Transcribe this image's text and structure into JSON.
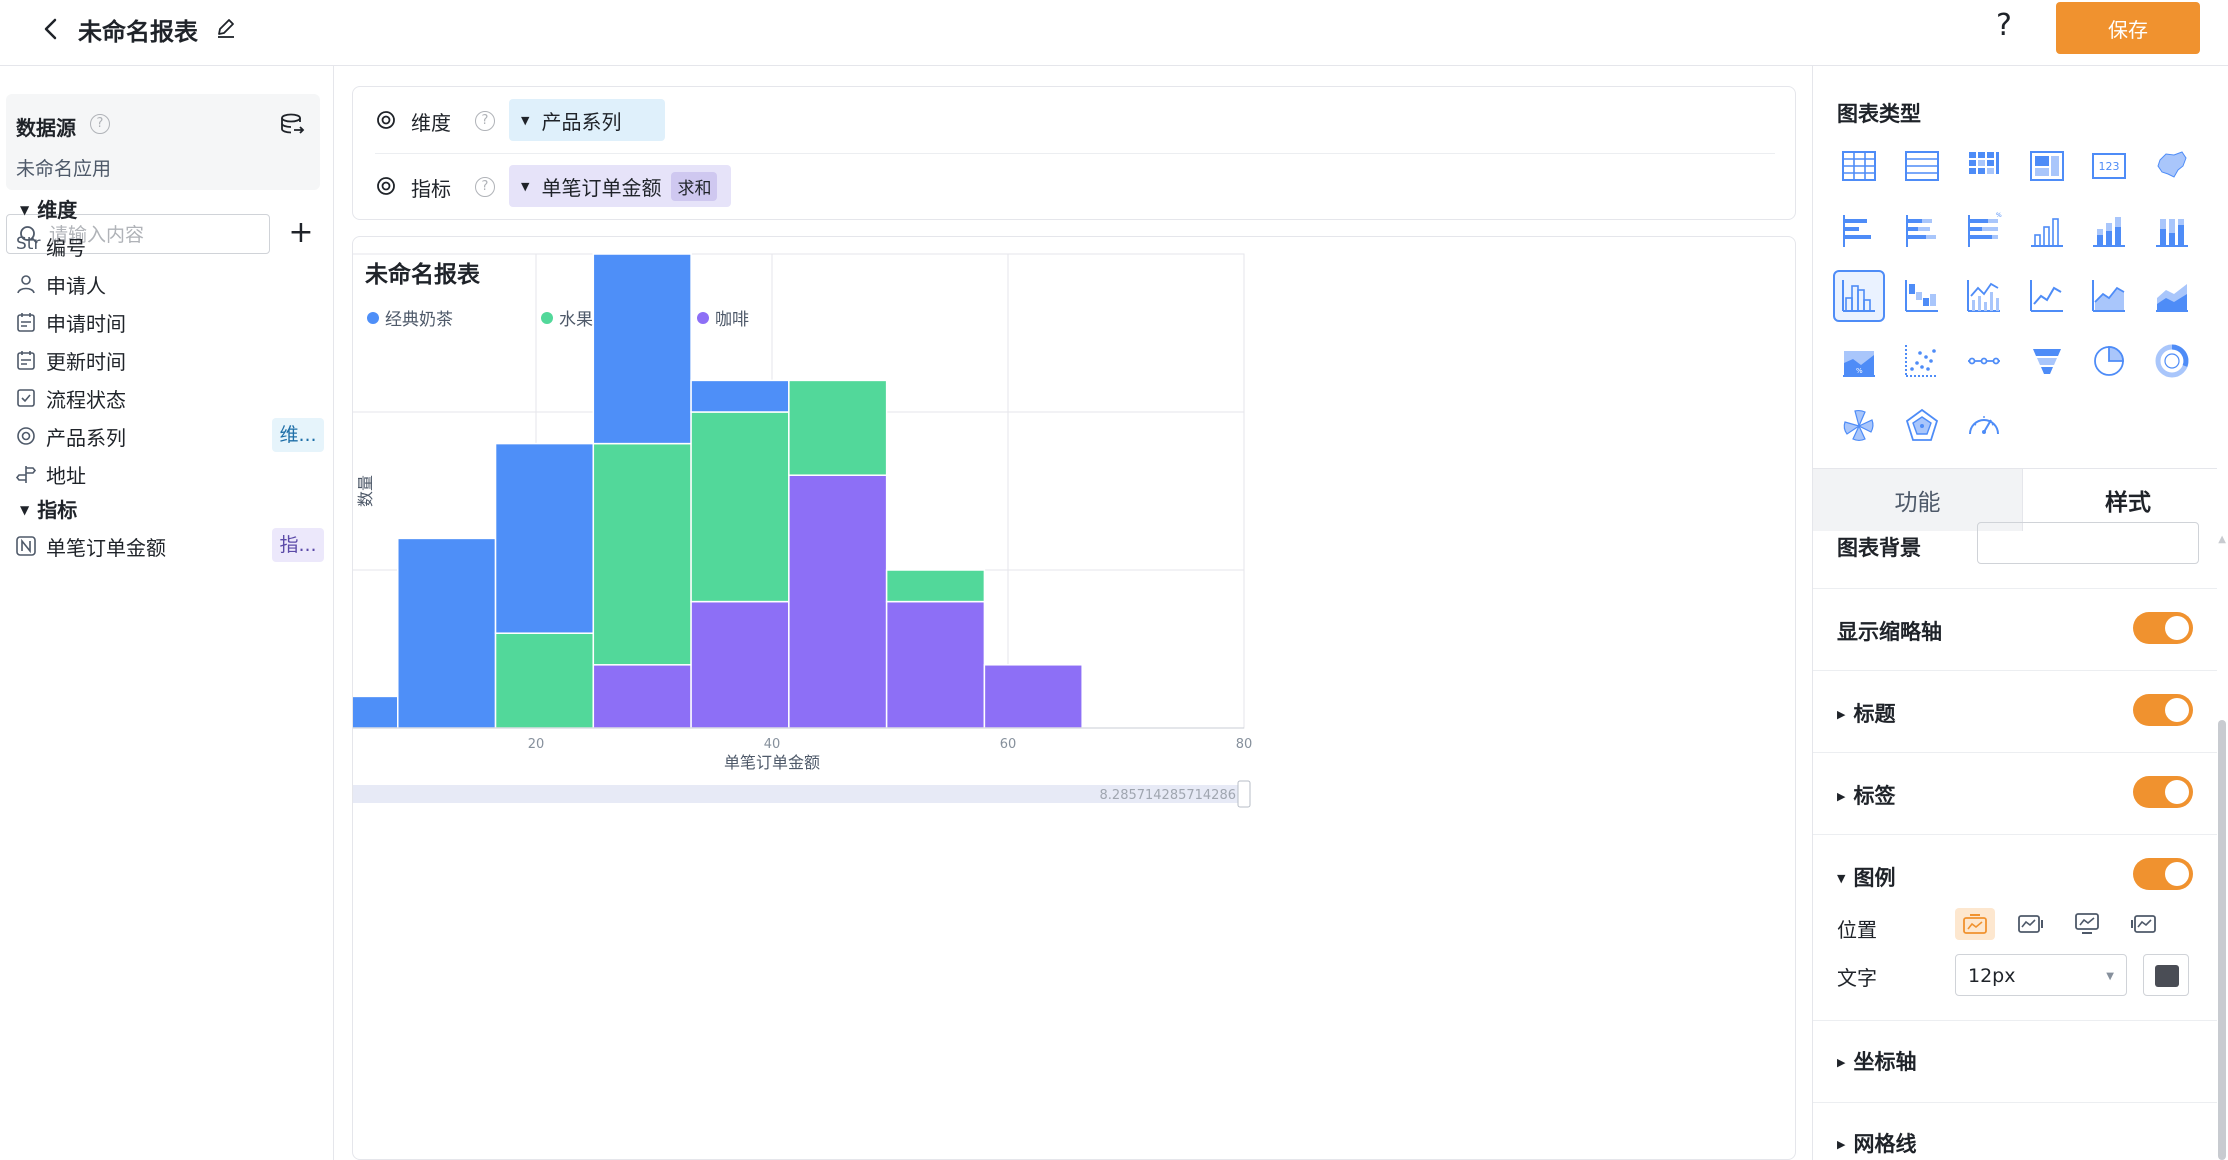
{
  "header": {
    "title": "未命名报表",
    "save_label": "保存",
    "help_label": "?"
  },
  "sidebar": {
    "datasource_label": "数据源",
    "help_label": "?",
    "app_name": "未命名应用",
    "search_placeholder": "请输入内容",
    "add_label": "+",
    "dimension_group": "维度",
    "metric_group": "指标",
    "dimensions": [
      {
        "label": "编号",
        "type_prefix": "Str",
        "icon": "string-type-icon",
        "tag": ""
      },
      {
        "label": "申请人",
        "type_prefix": "",
        "icon": "user-icon",
        "tag": ""
      },
      {
        "label": "申请时间",
        "type_prefix": "",
        "icon": "calendar-icon",
        "tag": ""
      },
      {
        "label": "更新时间",
        "type_prefix": "",
        "icon": "calendar-icon",
        "tag": ""
      },
      {
        "label": "流程状态",
        "type_prefix": "",
        "icon": "checkbox-icon",
        "tag": ""
      },
      {
        "label": "产品系列",
        "type_prefix": "",
        "icon": "radio-icon",
        "tag": "维..."
      },
      {
        "label": "地址",
        "type_prefix": "",
        "icon": "location-icon",
        "tag": ""
      }
    ],
    "metrics": [
      {
        "label": "单笔订单金额",
        "icon": "number-icon",
        "tag": "指..."
      }
    ]
  },
  "config": {
    "dimension_label": "维度",
    "dimension_value": "产品系列",
    "metric_label": "指标",
    "metric_value": "单笔订单金额",
    "metric_agg": "求和",
    "help_label": "?"
  },
  "chart": {
    "title": "未命名报表",
    "slider_min": "0",
    "slider_max": "8.285714285714286"
  },
  "chart_data": {
    "type": "bar",
    "stacked": true,
    "xlabel": "单笔订单金额",
    "ylabel": "数量",
    "xlim": [
      0,
      80
    ],
    "ylim": [
      0,
      15
    ],
    "x_ticks": [
      0,
      20,
      40,
      60,
      80
    ],
    "y_ticks": [
      0,
      5,
      10,
      15
    ],
    "bin_edges": [
      0,
      8.2857,
      16.5714,
      24.8571,
      33.1429,
      41.4286,
      49.7143,
      58.0,
      66.2857,
      74.5714
    ],
    "series": [
      {
        "name": "咖啡",
        "color": "#8d6ff6",
        "values": [
          0,
          0,
          0,
          2,
          4,
          8,
          4,
          2,
          0
        ]
      },
      {
        "name": "水果茶",
        "color": "#52d89a",
        "values": [
          0,
          0,
          3,
          7,
          6,
          3,
          1,
          0,
          0
        ]
      },
      {
        "name": "经典奶茶",
        "color": "#4e8ff8",
        "values": [
          1,
          6,
          6,
          6,
          1,
          0,
          0,
          0,
          0
        ]
      }
    ],
    "legend_order": [
      "经典奶茶",
      "水果茶",
      "咖啡"
    ],
    "legend_position": "top-left",
    "grid": true
  },
  "panel": {
    "chart_type_title": "图表类型",
    "chart_types": [
      "table-chart-icon",
      "detail-table-icon",
      "pivot-table-icon",
      "card-table-icon",
      "indicator-card-icon",
      "map-chart-icon",
      "bar-horizontal-icon",
      "stacked-bar-horizontal-icon",
      "percent-bar-horizontal-icon",
      "column-chart-icon",
      "stacked-column-icon",
      "percent-column-icon",
      "histogram-icon",
      "waterfall-icon",
      "combo-chart-icon",
      "line-chart-icon",
      "area-chart-icon",
      "stacked-area-icon",
      "percent-area-icon",
      "scatter-chart-icon",
      "dot-line-icon",
      "funnel-chart-icon",
      "pie-chart-icon",
      "donut-chart-icon",
      "rose-chart-icon",
      "radar-chart-icon",
      "gauge-chart-icon"
    ],
    "active_chart_type": "histogram-icon",
    "tab_function": "功能",
    "tab_style": "样式",
    "bg_label": "图表背景",
    "thumbnail_axis_label": "显示缩略轴",
    "title_label": "标题",
    "data_label_label": "标签",
    "legend_label": "图例",
    "position_label": "位置",
    "text_label": "文字",
    "font_size": "12px",
    "font_color": "#4a4d55",
    "axis_label": "坐标轴",
    "grid_label": "网格线",
    "accent_color": "#f0922f"
  }
}
